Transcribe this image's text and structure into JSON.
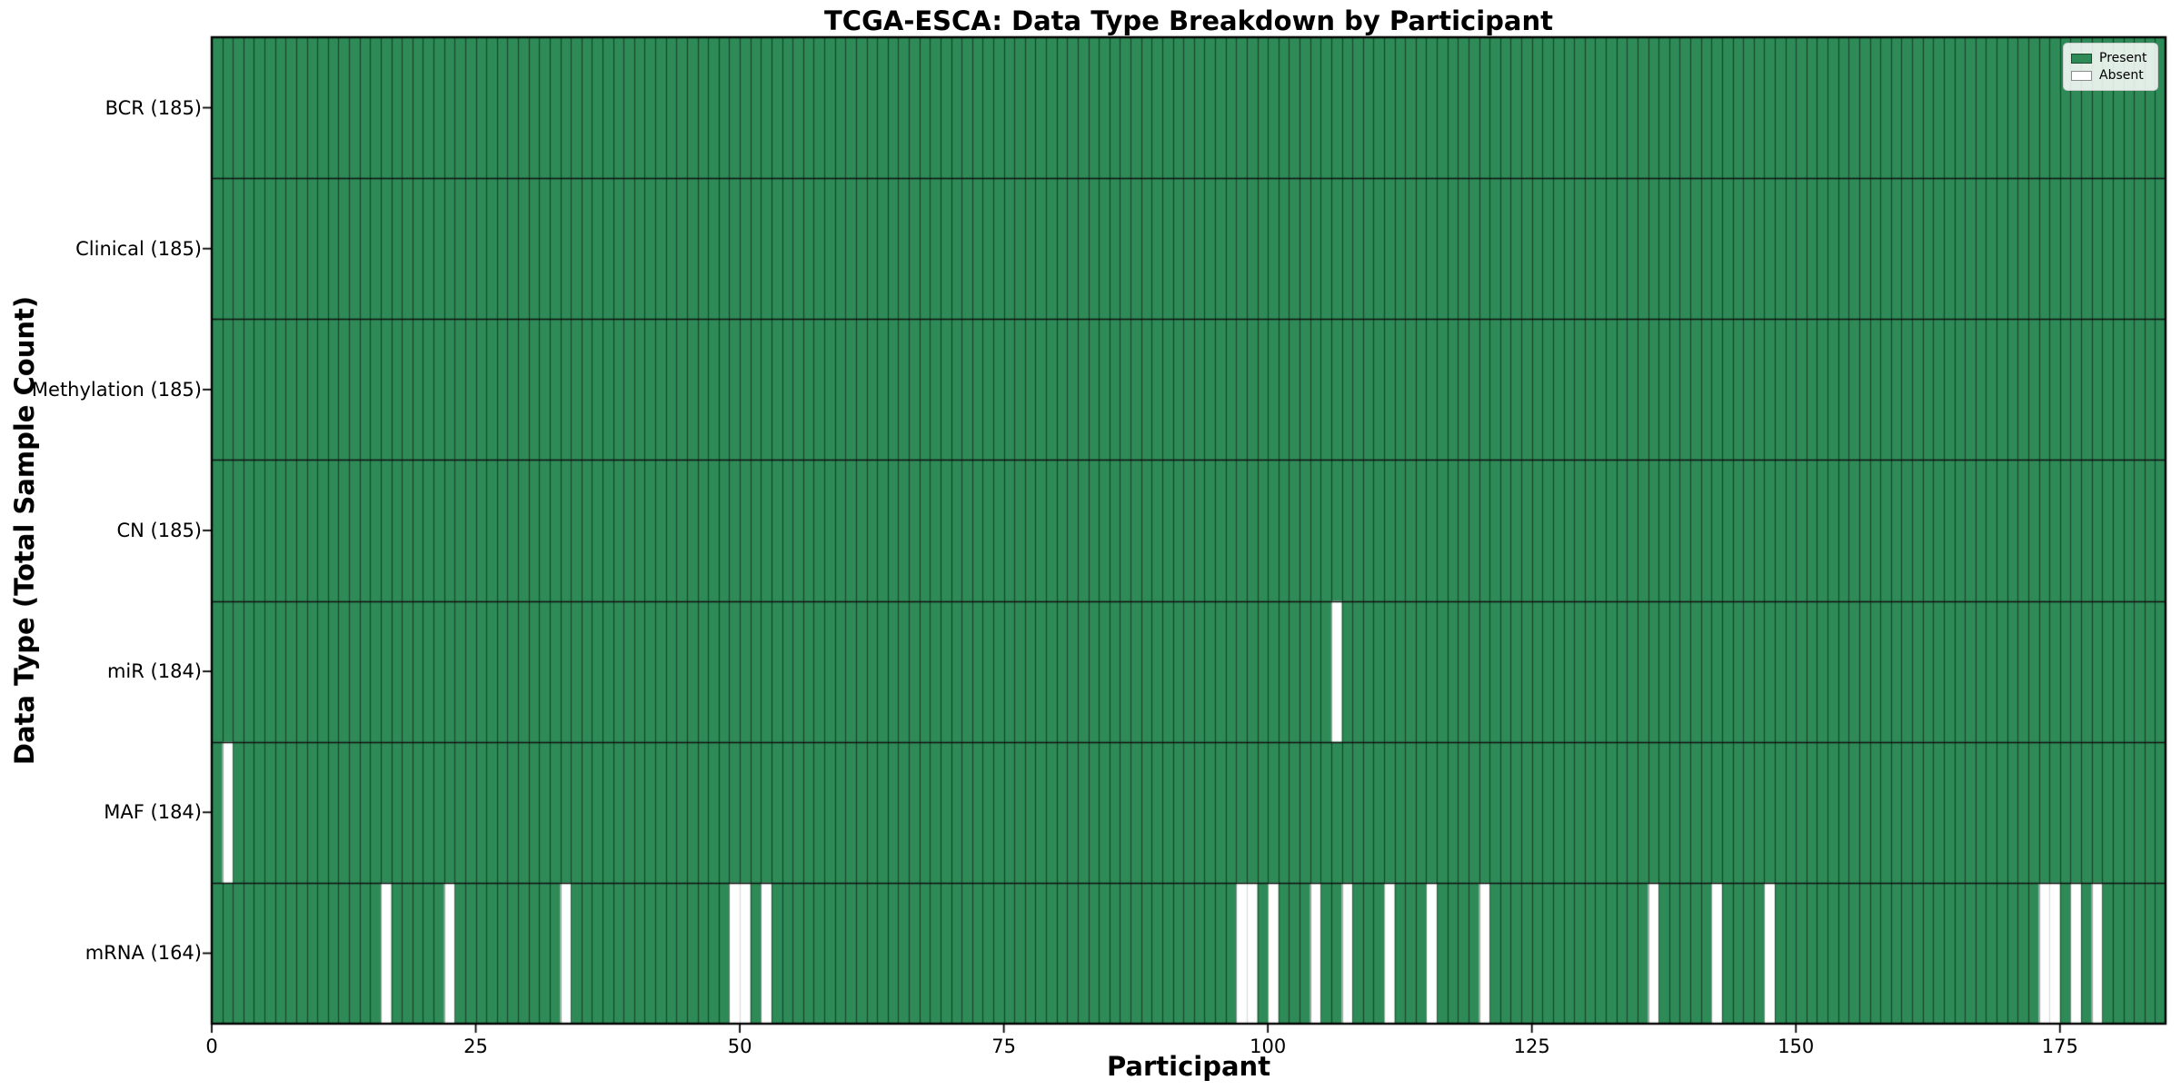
{
  "chart_data": {
    "type": "heatmap",
    "title": "TCGA-ESCA: Data Type Breakdown by Participant",
    "xlabel": "Participant",
    "ylabel": "Data Type (Total Sample Count)",
    "x_ticks": [
      0,
      25,
      50,
      75,
      100,
      125,
      150,
      175
    ],
    "x_range": [
      0,
      185
    ],
    "n_participants": 185,
    "categories": [
      "BCR (185)",
      "Clinical (185)",
      "Methylation (185)",
      "CN (185)",
      "miR (184)",
      "MAF (184)",
      "mRNA (164)"
    ],
    "rows": [
      {
        "label": "BCR (185)",
        "total": 185,
        "absent_participants": []
      },
      {
        "label": "Clinical (185)",
        "total": 185,
        "absent_participants": []
      },
      {
        "label": "Methylation (185)",
        "total": 185,
        "absent_participants": []
      },
      {
        "label": "CN (185)",
        "total": 185,
        "absent_participants": []
      },
      {
        "label": "miR (184)",
        "total": 184,
        "absent_participants": [
          106
        ]
      },
      {
        "label": "MAF (184)",
        "total": 184,
        "absent_participants": [
          1
        ]
      },
      {
        "label": "mRNA (164)",
        "total": 164,
        "absent_participants": [
          16,
          22,
          33,
          49,
          50,
          52,
          97,
          98,
          100,
          104,
          107,
          111,
          115,
          120,
          136,
          142,
          147,
          173,
          174,
          176,
          178
        ]
      }
    ],
    "legend": {
      "position": "upper right",
      "entries": [
        {
          "label": "Present",
          "color": "#2e8b57"
        },
        {
          "label": "Absent",
          "color": "#ffffff"
        }
      ]
    },
    "colors": {
      "present": "#2e8b57",
      "absent": "#ffffff",
      "cell_edge_dark": "rgba(0,0,0,0.50)",
      "cell_edge_mixed": "rgba(0,0,0,0.35)",
      "cell_edge_light": "rgba(0,0,0,0.15)",
      "row_separator": "#111111",
      "spine": "#000000",
      "background": "#ffffff"
    },
    "grid": "cell-borders"
  }
}
